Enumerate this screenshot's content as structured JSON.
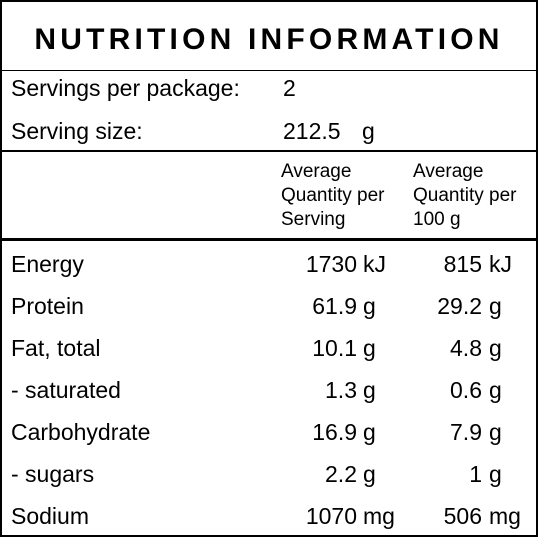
{
  "panel": {
    "title": "NUTRITION INFORMATION",
    "servings_per_package_label": "Servings per package:",
    "servings_per_package_value": "2",
    "serving_size_label": "Serving size:",
    "serving_size_value": "212.5",
    "serving_size_unit": "g"
  },
  "headers": {
    "per_serving": [
      "Average",
      "Quantity per",
      "Serving"
    ],
    "per_100g": [
      "Average",
      "Quantity per",
      "100 g"
    ]
  },
  "rows": [
    {
      "label": "Energy",
      "serving_value": "1730",
      "serving_unit": "kJ",
      "per100_value": "815",
      "per100_unit": "kJ"
    },
    {
      "label": "Protein",
      "serving_value": "61.9",
      "serving_unit": "g",
      "per100_value": "29.2",
      "per100_unit": "g"
    },
    {
      "label": "Fat, total",
      "serving_value": "10.1",
      "serving_unit": "g",
      "per100_value": "4.8",
      "per100_unit": "g"
    },
    {
      "label": "- saturated",
      "serving_value": "1.3",
      "serving_unit": "g",
      "per100_value": "0.6",
      "per100_unit": "g"
    },
    {
      "label": "Carbohydrate",
      "serving_value": "16.9",
      "serving_unit": "g",
      "per100_value": "7.9",
      "per100_unit": "g"
    },
    {
      "label": "- sugars",
      "serving_value": "2.2",
      "serving_unit": "g",
      "per100_value": "1",
      "per100_unit": "g"
    },
    {
      "label": "Sodium",
      "serving_value": "1070",
      "serving_unit": "mg",
      "per100_value": "506",
      "per100_unit": "mg"
    }
  ]
}
